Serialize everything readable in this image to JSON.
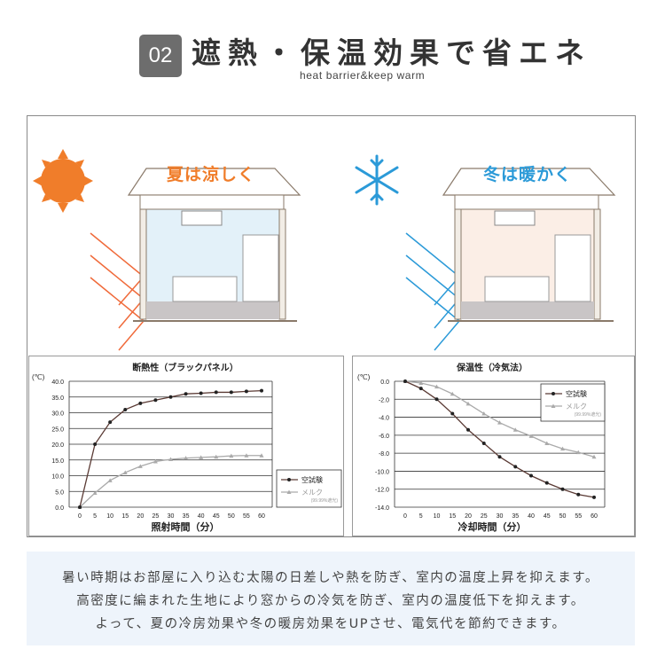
{
  "header": {
    "badge": "02",
    "title": "遮熱・保温効果で省エネ",
    "subtitle": "heat barrier&keep warm"
  },
  "illustration": {
    "summer": {
      "label": "夏は涼しく",
      "icon": "sun-icon",
      "color": "#f07d2a",
      "room_color": "#e3f1f9"
    },
    "winter": {
      "label": "冬は暖かく",
      "icon": "snowflake-icon",
      "color": "#2b9ad8",
      "room_color": "#fbeee6"
    }
  },
  "chart_data": [
    {
      "type": "line",
      "title": "断熱性（ブラックパネル）",
      "ylabel": "(℃)",
      "xlabel": "照射時間（分）",
      "x": [
        0,
        5,
        10,
        15,
        20,
        25,
        30,
        35,
        40,
        45,
        50,
        55,
        60
      ],
      "ylim": [
        0,
        40
      ],
      "yticks": [
        "0.0",
        "5.0",
        "10.0",
        "15.0",
        "20.0",
        "25.0",
        "30.0",
        "35.0",
        "40.0"
      ],
      "grid": true,
      "legend": "right-outside",
      "series": [
        {
          "name": "空試験",
          "color": "#5a3a34",
          "marker": "circle",
          "values": [
            0,
            20,
            27,
            31,
            33,
            34,
            35,
            36,
            36.2,
            36.5,
            36.5,
            36.8,
            37
          ]
        },
        {
          "name": "メルク",
          "note": "(99.99%遮光)",
          "color": "#aaaaaa",
          "marker": "triangle",
          "values": [
            0,
            4.5,
            8.5,
            11,
            13,
            14.5,
            15.2,
            15.6,
            15.8,
            16,
            16.3,
            16.4,
            16.4
          ]
        }
      ]
    },
    {
      "type": "line",
      "title": "保温性（冷気法）",
      "ylabel": "(℃)",
      "xlabel": "冷却時間（分）",
      "x": [
        0,
        5,
        10,
        15,
        20,
        25,
        30,
        35,
        40,
        45,
        50,
        55,
        60
      ],
      "ylim": [
        -14,
        0
      ],
      "yticks": [
        "0.0",
        "-2.0",
        "-4.0",
        "-6.0",
        "-8.0",
        "-10.0",
        "-12.0",
        "-14.0"
      ],
      "grid": true,
      "legend": "top-right",
      "series": [
        {
          "name": "空試験",
          "color": "#5a3a34",
          "marker": "circle",
          "values": [
            0,
            -0.8,
            -2,
            -3.6,
            -5.4,
            -6.9,
            -8.4,
            -9.5,
            -10.5,
            -11.3,
            -12,
            -12.6,
            -12.9
          ]
        },
        {
          "name": "メルク",
          "note": "(99.99%遮光)",
          "color": "#aaaaaa",
          "marker": "triangle",
          "values": [
            0,
            -0.2,
            -0.6,
            -1.4,
            -2.5,
            -3.6,
            -4.6,
            -5.4,
            -6.1,
            -6.9,
            -7.5,
            -7.9,
            -8.4
          ]
        }
      ]
    }
  ],
  "description": [
    "暑い時期はお部屋に入り込む太陽の日差しや熱を防ぎ、室内の温度上昇を抑えます。",
    "高密度に編まれた生地により窓からの冷気を防ぎ、室内の温度低下を抑えます。",
    "よって、夏の冷房効果や冬の暖房効果をUPさせ、電気代を節約できます。"
  ]
}
